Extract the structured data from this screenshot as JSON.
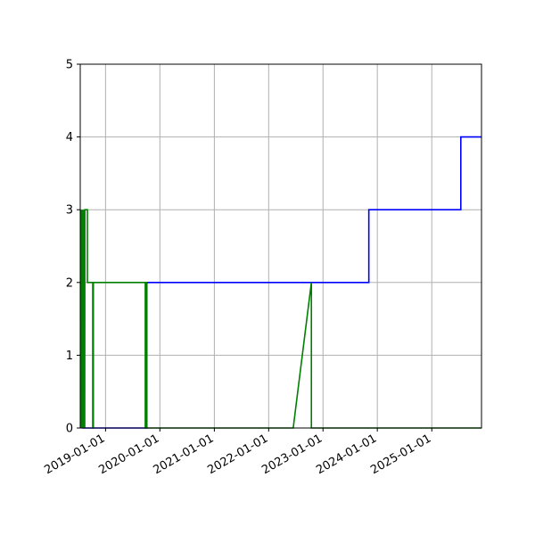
{
  "chart_data": {
    "type": "line",
    "title": "",
    "xlabel": "",
    "ylabel": "",
    "x_type": "date",
    "xlim": [
      "2018-07-15",
      "2025-12-01"
    ],
    "ylim": [
      0,
      5
    ],
    "grid": true,
    "x_ticks": [
      "2019-01-01",
      "2020-01-01",
      "2021-01-01",
      "2022-01-01",
      "2023-01-01",
      "2024-01-01",
      "2025-01-01"
    ],
    "y_ticks": [
      0,
      1,
      2,
      3,
      4,
      5
    ],
    "series": [
      {
        "color": "#0000ff",
        "points": [
          [
            "2018-07-28",
            0
          ],
          [
            "2018-07-28",
            2
          ],
          [
            "2018-07-31",
            2
          ],
          [
            "2018-07-31",
            0
          ],
          [
            "2019-10-01",
            0
          ],
          [
            "2019-10-01",
            2
          ],
          [
            "2019-10-02",
            2
          ],
          [
            "2019-10-02",
            0
          ],
          [
            "2019-10-05",
            0
          ],
          [
            "2019-10-05",
            2
          ],
          [
            "2023-11-05",
            2
          ],
          [
            "2023-11-05",
            3
          ],
          [
            "2025-07-15",
            3
          ],
          [
            "2025-07-15",
            4
          ],
          [
            "2025-12-01",
            4
          ]
        ]
      },
      {
        "color": "#008000",
        "points": [
          [
            "2018-07-20",
            3
          ],
          [
            "2018-07-22",
            0
          ],
          [
            "2018-07-24",
            3
          ],
          [
            "2018-07-26",
            0
          ],
          [
            "2018-07-29",
            3
          ],
          [
            "2018-07-31",
            0
          ],
          [
            "2018-08-03",
            3
          ],
          [
            "2018-08-05",
            0
          ],
          [
            "2018-08-07",
            3
          ],
          [
            "2018-08-09",
            0
          ],
          [
            "2018-08-11",
            3
          ],
          [
            "2018-08-14",
            0
          ],
          [
            "2018-08-15",
            3
          ],
          [
            "2018-09-01",
            3
          ],
          [
            "2018-09-01",
            2
          ],
          [
            "2018-10-07",
            2
          ],
          [
            "2018-10-07",
            0
          ],
          [
            "2018-10-11",
            0
          ],
          [
            "2018-10-11",
            2
          ],
          [
            "2019-09-25",
            2
          ],
          [
            "2019-09-25",
            0
          ],
          [
            "2019-09-29",
            0
          ],
          [
            "2019-09-29",
            2
          ],
          [
            "2019-10-03",
            2
          ],
          [
            "2019-10-03",
            0
          ],
          [
            "2022-06-15",
            0
          ],
          [
            "2022-10-15",
            2
          ],
          [
            "2022-10-15",
            0
          ],
          [
            "2025-12-01",
            0
          ]
        ]
      }
    ]
  }
}
